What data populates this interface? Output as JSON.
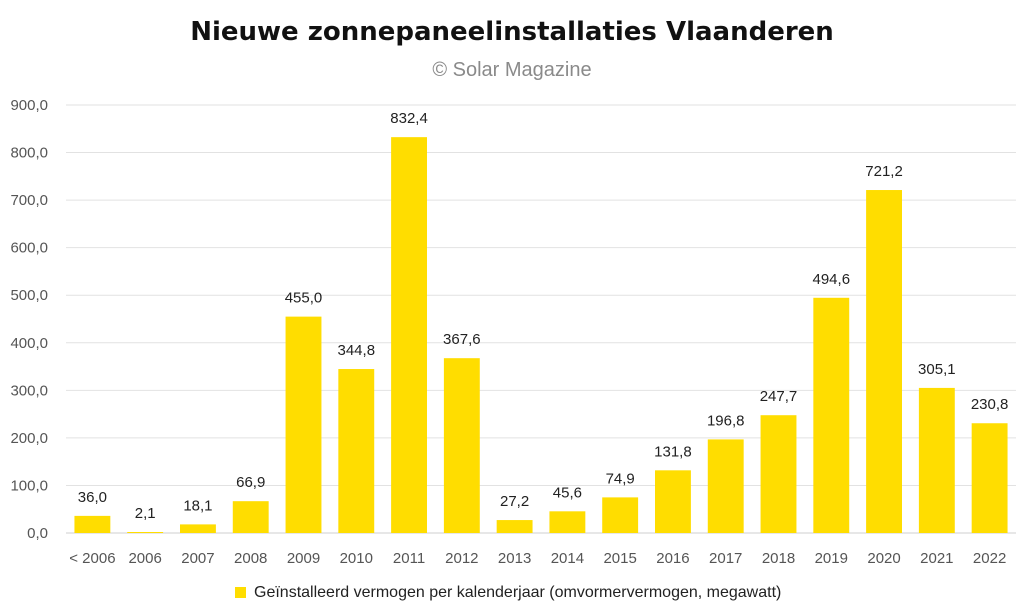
{
  "chart_data": {
    "type": "bar",
    "title": "Nieuwe zonnepaneelinstallaties Vlaanderen",
    "subtitle": "© Solar Magazine",
    "xlabel": "",
    "ylabel": "",
    "ylim": [
      0,
      900
    ],
    "yticks": [
      0,
      100,
      200,
      300,
      400,
      500,
      600,
      700,
      800,
      900
    ],
    "ytick_labels": [
      "0,0",
      "100,0",
      "200,0",
      "300,0",
      "400,0",
      "500,0",
      "600,0",
      "700,0",
      "800,0",
      "900,0"
    ],
    "grid": true,
    "legend_position": "bottom",
    "categories": [
      "< 2006",
      "2006",
      "2007",
      "2008",
      "2009",
      "2010",
      "2011",
      "2012",
      "2013",
      "2014",
      "2015",
      "2016",
      "2017",
      "2018",
      "2019",
      "2020",
      "2021",
      "2022"
    ],
    "series": [
      {
        "name": "Geïnstalleerd vermogen per kalenderjaar (omvormervermogen, megawatt)",
        "color": "#FFDD00",
        "values": [
          36.0,
          2.1,
          18.1,
          66.9,
          455.0,
          344.8,
          832.4,
          367.6,
          27.2,
          45.6,
          74.9,
          131.8,
          196.8,
          247.7,
          494.6,
          721.2,
          305.1,
          230.8
        ],
        "labels": [
          "36,0",
          "2,1",
          "18,1",
          "66,9",
          "455,0",
          "344,8",
          "832,4",
          "367,6",
          "27,2",
          "45,6",
          "74,9",
          "131,8",
          "196,8",
          "247,7",
          "494,6",
          "721,2",
          "305,1",
          "230,8"
        ]
      }
    ]
  }
}
